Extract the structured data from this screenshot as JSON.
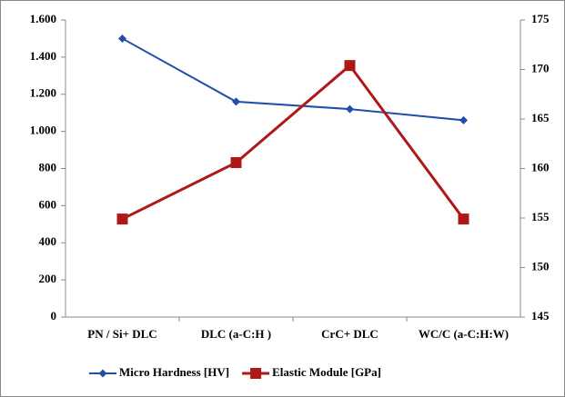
{
  "chart_data": {
    "type": "line",
    "categories": [
      "PN / Si+ DLC",
      "DLC (a-C:H  )",
      "CrC+ DLC",
      "WC/C (a-C:H:W)"
    ],
    "series": [
      {
        "name": "Micro Hardness [HV]",
        "color": "#1f4fa8",
        "marker": "diamond",
        "values": [
          1500,
          1160,
          1120,
          1060
        ]
      },
      {
        "name": "Elastic Module [GPa]",
        "color": "#b01818",
        "marker": "square",
        "axis": "y2",
        "values": [
          154.9,
          160.6,
          170.4,
          154.9
        ]
      }
    ],
    "ylim": [
      0,
      1600
    ],
    "yticks": [
      0,
      200,
      400,
      600,
      800,
      {
        "value": 1000,
        "label": "1.000"
      },
      {
        "value": 1200,
        "label": "1.200"
      },
      {
        "value": 1400,
        "label": "1.400"
      },
      {
        "value": 1600,
        "label": "1.600"
      }
    ],
    "y2lim": [
      145,
      175
    ],
    "y2ticks": [
      145,
      150,
      155,
      160,
      165,
      170,
      175
    ],
    "legend": "bottom"
  }
}
